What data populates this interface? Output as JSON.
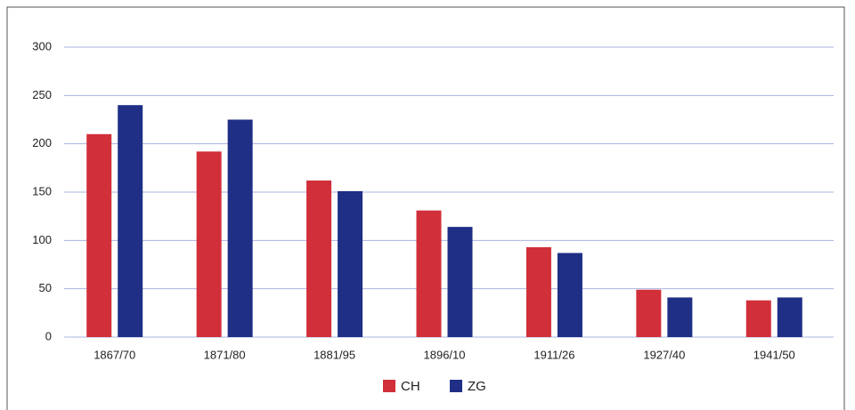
{
  "chart_data": {
    "type": "bar",
    "categories": [
      "1867/70",
      "1871/80",
      "1881/95",
      "1896/10",
      "1911/26",
      "1927/40",
      "1941/50"
    ],
    "series": [
      {
        "name": "CH",
        "color": "#d12f3a",
        "values": [
          210,
          192,
          162,
          131,
          93,
          49,
          38
        ]
      },
      {
        "name": "ZG",
        "color": "#1f2f86",
        "values": [
          240,
          225,
          151,
          114,
          87,
          41,
          41
        ]
      }
    ],
    "ylim": [
      0,
      300
    ],
    "yticks": [
      0,
      50,
      100,
      150,
      200,
      250,
      300
    ],
    "grid": true,
    "legend": "bottom"
  }
}
